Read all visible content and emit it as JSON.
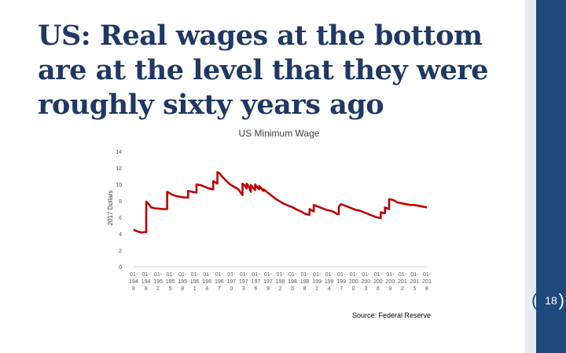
{
  "slide": {
    "title": "US: Real wages at the bottom are at the level that they were roughly sixty years ago",
    "source": "Source: Federal Reserve",
    "page_number": "18"
  },
  "colors": {
    "accent": "#1f497d",
    "series": "#c00000",
    "title": "#1f3864"
  },
  "chart_data": {
    "type": "line",
    "title": "US Minimum Wage",
    "xlabel": "",
    "ylabel": "2017 Dollars",
    "ylim": [
      0,
      14
    ],
    "yticks": [
      0,
      2,
      4,
      6,
      8,
      10,
      12,
      14
    ],
    "grid": false,
    "legend": "none",
    "xticks": [
      "01-1948",
      "01-1949",
      "01-1952",
      "01-1955",
      "01-1958",
      "01-1961",
      "01-1964",
      "01-1967",
      "01-1970",
      "01-1973",
      "01-1976",
      "01-1979",
      "01-1982",
      "01-1985",
      "01-1988",
      "01-1991",
      "01-1994",
      "01-1997",
      "01-2000",
      "01-2003",
      "01-2006",
      "01-2009",
      "01-2012",
      "01-2015",
      "01-2018"
    ],
    "xtick_lines": [
      [
        "01-",
        "01-",
        "01-",
        "01-",
        "01-",
        "01-",
        "01-",
        "01-",
        "01-",
        "01-",
        "01-",
        "01-",
        "01-",
        "01-",
        "01-",
        "01-",
        "01-",
        "01-",
        "01-",
        "01-",
        "01-",
        "01-",
        "01-",
        "01-",
        "01-"
      ],
      [
        "194",
        "194",
        "195",
        "195",
        "195",
        "196",
        "196",
        "196",
        "197",
        "197",
        "197",
        "197",
        "198",
        "198",
        "198",
        "199",
        "199",
        "199",
        "200",
        "200",
        "200",
        "200",
        "201",
        "201",
        "201"
      ],
      [
        "8",
        "9",
        "2",
        "5",
        "8",
        "1",
        "4",
        "7",
        "0",
        "3",
        "6",
        "9",
        "2",
        "5",
        "8",
        "1",
        "4",
        "7",
        "0",
        "3",
        "6",
        "9",
        "2",
        "5",
        "8"
      ]
    ],
    "x_range": [
      1948,
      2018
    ],
    "series": [
      {
        "name": "US Minimum Wage",
        "points": [
          [
            1948.0,
            4.5
          ],
          [
            1948.8,
            4.3
          ],
          [
            1949.5,
            4.2
          ],
          [
            1949.9,
            4.15
          ],
          [
            1950.5,
            4.2
          ],
          [
            1950.99,
            4.2
          ],
          [
            1951.0,
            7.9
          ],
          [
            1951.6,
            7.6
          ],
          [
            1952.2,
            7.2
          ],
          [
            1953,
            7.1
          ],
          [
            1954,
            7.05
          ],
          [
            1955,
            7.0
          ],
          [
            1955.99,
            7.0
          ],
          [
            1956.0,
            9.1
          ],
          [
            1957,
            8.8
          ],
          [
            1958,
            8.6
          ],
          [
            1959,
            8.5
          ],
          [
            1960,
            8.4
          ],
          [
            1960.99,
            8.4
          ],
          [
            1961.0,
            9.2
          ],
          [
            1962,
            9.1
          ],
          [
            1962.99,
            9.0
          ],
          [
            1963.0,
            10.0
          ],
          [
            1964,
            9.9
          ],
          [
            1965,
            9.7
          ],
          [
            1966,
            9.5
          ],
          [
            1966.99,
            9.4
          ],
          [
            1967.0,
            10.4
          ],
          [
            1967.99,
            10.1
          ],
          [
            1968.0,
            11.5
          ],
          [
            1968.6,
            11.3
          ],
          [
            1969,
            11.0
          ],
          [
            1970,
            10.5
          ],
          [
            1971,
            10.0
          ],
          [
            1972,
            9.7
          ],
          [
            1973,
            9.4
          ],
          [
            1973.99,
            8.7
          ],
          [
            1974.0,
            10.1
          ],
          [
            1974.6,
            9.8
          ],
          [
            1974.99,
            9.5
          ],
          [
            1975.0,
            10.1
          ],
          [
            1975.6,
            9.6
          ],
          [
            1975.99,
            9.1
          ],
          [
            1976.0,
            9.9
          ],
          [
            1976.99,
            9.3
          ],
          [
            1977.0,
            10.0
          ],
          [
            1977.6,
            9.6
          ],
          [
            1977.99,
            9.4
          ],
          [
            1978.0,
            9.8
          ],
          [
            1978.99,
            9.2
          ],
          [
            1979.0,
            9.4
          ],
          [
            1980,
            9.0
          ],
          [
            1981,
            8.6
          ],
          [
            1982,
            8.2
          ],
          [
            1983,
            7.9
          ],
          [
            1984,
            7.6
          ],
          [
            1985,
            7.4
          ],
          [
            1986,
            7.2
          ],
          [
            1987,
            6.9
          ],
          [
            1988,
            6.7
          ],
          [
            1989,
            6.4
          ],
          [
            1989.99,
            6.3
          ],
          [
            1990.0,
            7.0
          ],
          [
            1990.99,
            6.7
          ],
          [
            1991.0,
            7.5
          ],
          [
            1992,
            7.3
          ],
          [
            1993,
            7.1
          ],
          [
            1994,
            6.9
          ],
          [
            1995,
            6.8
          ],
          [
            1996,
            6.6
          ],
          [
            1996.5,
            6.4
          ],
          [
            1996.99,
            6.4
          ],
          [
            1997.0,
            7.3
          ],
          [
            1997.5,
            7.6
          ],
          [
            1998,
            7.5
          ],
          [
            1999,
            7.3
          ],
          [
            2000,
            7.1
          ],
          [
            2001,
            6.9
          ],
          [
            2002,
            6.8
          ],
          [
            2003,
            6.6
          ],
          [
            2004,
            6.4
          ],
          [
            2005,
            6.2
          ],
          [
            2006,
            6.0
          ],
          [
            2006.99,
            5.9
          ],
          [
            2007.0,
            6.6
          ],
          [
            2007.99,
            6.5
          ],
          [
            2008.0,
            7.2
          ],
          [
            2008.99,
            7.0
          ],
          [
            2009.0,
            8.2
          ],
          [
            2010,
            8.1
          ],
          [
            2011,
            7.8
          ],
          [
            2012,
            7.7
          ],
          [
            2013,
            7.6
          ],
          [
            2014,
            7.5
          ],
          [
            2015,
            7.5
          ],
          [
            2016,
            7.4
          ],
          [
            2017,
            7.3
          ],
          [
            2018,
            7.2
          ]
        ]
      }
    ]
  }
}
